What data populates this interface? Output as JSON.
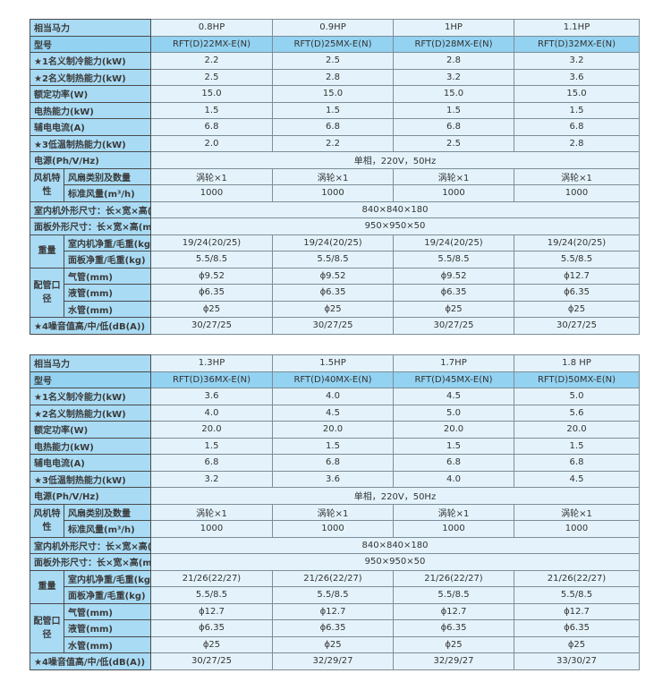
{
  "tables": [
    {
      "hp_label": "相当马力",
      "hp": [
        "0.8HP",
        "0.9HP",
        "1HP",
        "1.1HP"
      ],
      "model_label": "型号",
      "model": [
        "RFT(D)22MX-E(N)",
        "RFT(D)25MX-E(N)",
        "RFT(D)28MX-E(N)",
        "RFT(D)32MX-E(N)"
      ],
      "rows": [
        {
          "label": "★1名义制冷能力(kW)",
          "values": [
            "2.2",
            "2.5",
            "2.8",
            "3.2"
          ]
        },
        {
          "label": "★2名义制热能力(kW)",
          "values": [
            "2.5",
            "2.8",
            "3.2",
            "3.6"
          ]
        },
        {
          "label": "额定功率(W)",
          "values": [
            "15.0",
            "15.0",
            "15.0",
            "15.0"
          ]
        },
        {
          "label": "电热能力(kW)",
          "values": [
            "1.5",
            "1.5",
            "1.5",
            "1.5"
          ]
        },
        {
          "label": "辅电电流(A)",
          "values": [
            "6.8",
            "6.8",
            "6.8",
            "6.8"
          ]
        },
        {
          "label": "★3低温制热能力(kW)",
          "values": [
            "2.0",
            "2.2",
            "2.5",
            "2.8"
          ]
        }
      ],
      "power_label": "电源(Ph/V/Hz)",
      "power": "单相，220V，50Hz",
      "fan": {
        "group": "风机特性",
        "rows": [
          {
            "label": "风扇类别及数量",
            "values": [
              "涡轮×1",
              "涡轮×1",
              "涡轮×1",
              "涡轮×1"
            ]
          },
          {
            "label": "标准风量(m³/h)",
            "values": [
              "1000",
              "1000",
              "1000",
              "1000"
            ]
          }
        ]
      },
      "indoor_dim_label": "室内机外形尺寸：长×宽×高(mm)",
      "indoor_dim": "840×840×180",
      "panel_dim_label": "面板外形尺寸：长×宽×高(mm)",
      "panel_dim": "950×950×50",
      "weight": {
        "group": "重量",
        "rows": [
          {
            "label": "室内机净重/毛重(kg)",
            "values": [
              "19/24(20/25)",
              "19/24(20/25)",
              "19/24(20/25)",
              "19/24(20/25)"
            ]
          },
          {
            "label": "面板净重/毛重(kg)",
            "values": [
              "5.5/8.5",
              "5.5/8.5",
              "5.5/8.5",
              "5.5/8.5"
            ]
          }
        ]
      },
      "pipe": {
        "group": "配管口径",
        "rows": [
          {
            "label": "气管(mm)",
            "values": [
              "ϕ9.52",
              "ϕ9.52",
              "ϕ9.52",
              "ϕ12.7"
            ]
          },
          {
            "label": "液管(mm)",
            "values": [
              "ϕ6.35",
              "ϕ6.35",
              "ϕ6.35",
              "ϕ6.35"
            ]
          },
          {
            "label": "水管(mm)",
            "values": [
              "ϕ25",
              "ϕ25",
              "ϕ25",
              "ϕ25"
            ]
          }
        ]
      },
      "noise_label": "★4噪音值高/中/低(dB(A))",
      "noise": [
        "30/27/25",
        "30/27/25",
        "30/27/25",
        "30/27/25"
      ]
    },
    {
      "hp_label": "相当马力",
      "hp": [
        "1.3HP",
        "1.5HP",
        "1.7HP",
        "1.8 HP"
      ],
      "model_label": "型号",
      "model": [
        "RFT(D)36MX-E(N)",
        "RFT(D)40MX-E(N)",
        "RFT(D)45MX-E(N)",
        "RFT(D)50MX-E(N)"
      ],
      "rows": [
        {
          "label": "★1名义制冷能力(kW)",
          "values": [
            "3.6",
            "4.0",
            "4.5",
            "5.0"
          ]
        },
        {
          "label": "★2名义制热能力(kW)",
          "values": [
            "4.0",
            "4.5",
            "5.0",
            "5.6"
          ]
        },
        {
          "label": "额定功率(W)",
          "values": [
            "20.0",
            "20.0",
            "20.0",
            "20.0"
          ]
        },
        {
          "label": "电热能力(kW)",
          "values": [
            "1.5",
            "1.5",
            "1.5",
            "1.5"
          ]
        },
        {
          "label": "辅电电流(A)",
          "values": [
            "6.8",
            "6.8",
            "6.8",
            "6.8"
          ]
        },
        {
          "label": "★3低温制热能力(kW)",
          "values": [
            "3.2",
            "3.6",
            "4.0",
            "4.5"
          ]
        }
      ],
      "power_label": "电源(Ph/V/Hz)",
      "power": "单相，220V，50Hz",
      "fan": {
        "group": "风机特性",
        "rows": [
          {
            "label": "风扇类别及数量",
            "values": [
              "涡轮×1",
              "涡轮×1",
              "涡轮×1",
              "涡轮×1"
            ]
          },
          {
            "label": "标准风量(m³/h)",
            "values": [
              "1000",
              "1000",
              "1000",
              "1000"
            ]
          }
        ]
      },
      "indoor_dim_label": "室内机外形尺寸：长×宽×高(mm)",
      "indoor_dim": "840×840×180",
      "panel_dim_label": "面板外形尺寸：长×宽×高(mm)",
      "panel_dim": "950×950×50",
      "weight": {
        "group": "重量",
        "rows": [
          {
            "label": "室内机净重/毛重(kg)",
            "values": [
              "21/26(22/27)",
              "21/26(22/27)",
              "21/26(22/27)",
              "21/26(22/27)"
            ]
          },
          {
            "label": "面板净重/毛重(kg)",
            "values": [
              "5.5/8.5",
              "5.5/8.5",
              "5.5/8.5",
              "5.5/8.5"
            ]
          }
        ]
      },
      "pipe": {
        "group": "配管口径",
        "rows": [
          {
            "label": "气管(mm)",
            "values": [
              "ϕ12.7",
              "ϕ12.7",
              "ϕ12.7",
              "ϕ12.7"
            ]
          },
          {
            "label": "液管(mm)",
            "values": [
              "ϕ6.35",
              "ϕ6.35",
              "ϕ6.35",
              "ϕ6.35"
            ]
          },
          {
            "label": "水管(mm)",
            "values": [
              "ϕ25",
              "ϕ25",
              "ϕ25",
              "ϕ25"
            ]
          }
        ]
      },
      "noise_label": "★4噪音值高/中/低(dB(A))",
      "noise": [
        "30/27/25",
        "32/29/27",
        "32/29/27",
        "33/30/27"
      ]
    }
  ]
}
